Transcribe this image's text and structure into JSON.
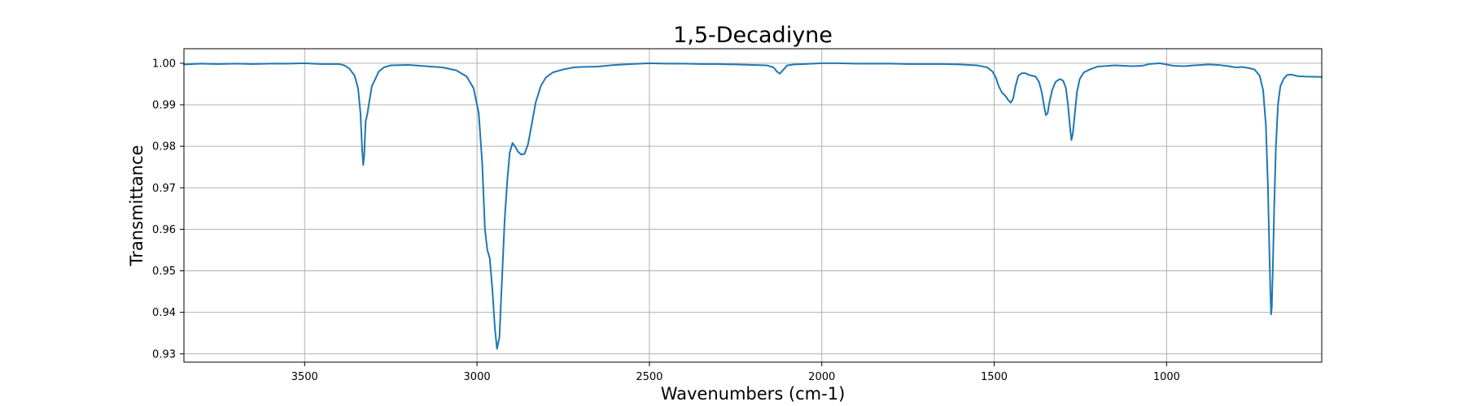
{
  "chart_data": {
    "type": "line",
    "title": "1,5-Decadiyne",
    "xlabel": "Wavenumbers (cm-1)",
    "ylabel": "Transmittance",
    "xlim": [
      3850,
      550
    ],
    "ylim": [
      0.928,
      1.0035
    ],
    "x_ticks": [
      3500,
      3000,
      2500,
      2000,
      1500,
      1000
    ],
    "y_ticks": [
      0.93,
      0.94,
      0.95,
      0.96,
      0.97,
      0.98,
      0.99,
      1.0
    ],
    "x_tick_labels": [
      "3500",
      "3000",
      "2500",
      "2000",
      "1500",
      "1000"
    ],
    "y_tick_labels": [
      "0.93",
      "0.94",
      "0.95",
      "0.96",
      "0.97",
      "0.98",
      "0.99",
      "1.00"
    ],
    "grid": true,
    "legend": "none",
    "colors": {
      "series": "#1f77b4",
      "grid": "#b0b0b0",
      "axis": "#000000",
      "background": "#ffffff"
    },
    "series": [
      {
        "points": [
          [
            3850,
            0.9997
          ],
          [
            3800,
            0.9999
          ],
          [
            3750,
            0.9998
          ],
          [
            3700,
            0.9999
          ],
          [
            3650,
            0.9998
          ],
          [
            3600,
            0.9999
          ],
          [
            3550,
            0.9999
          ],
          [
            3500,
            1.0
          ],
          [
            3450,
            0.9998
          ],
          [
            3400,
            0.9998
          ],
          [
            3385,
            0.9995
          ],
          [
            3370,
            0.9987
          ],
          [
            3355,
            0.997
          ],
          [
            3345,
            0.994
          ],
          [
            3338,
            0.988
          ],
          [
            3333,
            0.979
          ],
          [
            3330,
            0.9755
          ],
          [
            3327,
            0.978
          ],
          [
            3323,
            0.986
          ],
          [
            3318,
            0.9878
          ],
          [
            3312,
            0.991
          ],
          [
            3305,
            0.9945
          ],
          [
            3295,
            0.9962
          ],
          [
            3285,
            0.998
          ],
          [
            3270,
            0.999
          ],
          [
            3250,
            0.9995
          ],
          [
            3200,
            0.9996
          ],
          [
            3150,
            0.9993
          ],
          [
            3100,
            0.999
          ],
          [
            3060,
            0.9983
          ],
          [
            3030,
            0.9968
          ],
          [
            3010,
            0.994
          ],
          [
            2995,
            0.988
          ],
          [
            2985,
            0.976
          ],
          [
            2977,
            0.96
          ],
          [
            2970,
            0.955
          ],
          [
            2963,
            0.953
          ],
          [
            2955,
            0.945
          ],
          [
            2948,
            0.936
          ],
          [
            2942,
            0.9312
          ],
          [
            2935,
            0.934
          ],
          [
            2928,
            0.947
          ],
          [
            2920,
            0.962
          ],
          [
            2912,
            0.972
          ],
          [
            2905,
            0.9785
          ],
          [
            2897,
            0.9808
          ],
          [
            2890,
            0.98
          ],
          [
            2882,
            0.9788
          ],
          [
            2872,
            0.978
          ],
          [
            2862,
            0.9782
          ],
          [
            2852,
            0.9805
          ],
          [
            2842,
            0.985
          ],
          [
            2830,
            0.9905
          ],
          [
            2815,
            0.9945
          ],
          [
            2800,
            0.9966
          ],
          [
            2780,
            0.9978
          ],
          [
            2750,
            0.9985
          ],
          [
            2720,
            0.999
          ],
          [
            2700,
            0.9991
          ],
          [
            2650,
            0.9992
          ],
          [
            2600,
            0.9996
          ],
          [
            2550,
            0.9998
          ],
          [
            2500,
            1.0
          ],
          [
            2450,
            0.9999
          ],
          [
            2400,
            0.9999
          ],
          [
            2350,
            0.9998
          ],
          [
            2300,
            0.9998
          ],
          [
            2250,
            0.9997
          ],
          [
            2200,
            0.9996
          ],
          [
            2160,
            0.9995
          ],
          [
            2140,
            0.999
          ],
          [
            2130,
            0.998
          ],
          [
            2122,
            0.9975
          ],
          [
            2114,
            0.9982
          ],
          [
            2100,
            0.9995
          ],
          [
            2080,
            0.9997
          ],
          [
            2050,
            0.9998
          ],
          [
            2000,
            1.0
          ],
          [
            1950,
            1.0
          ],
          [
            1900,
            0.9999
          ],
          [
            1850,
            0.9999
          ],
          [
            1800,
            0.9999
          ],
          [
            1750,
            0.9998
          ],
          [
            1700,
            0.9998
          ],
          [
            1650,
            0.9998
          ],
          [
            1600,
            0.9997
          ],
          [
            1550,
            0.9995
          ],
          [
            1520,
            0.999
          ],
          [
            1505,
            0.998
          ],
          [
            1495,
            0.9965
          ],
          [
            1487,
            0.9945
          ],
          [
            1478,
            0.993
          ],
          [
            1466,
            0.992
          ],
          [
            1460,
            0.9912
          ],
          [
            1452,
            0.9905
          ],
          [
            1445,
            0.9915
          ],
          [
            1438,
            0.9945
          ],
          [
            1430,
            0.997
          ],
          [
            1420,
            0.9976
          ],
          [
            1410,
            0.9976
          ],
          [
            1400,
            0.9972
          ],
          [
            1390,
            0.997
          ],
          [
            1380,
            0.9968
          ],
          [
            1370,
            0.9955
          ],
          [
            1362,
            0.993
          ],
          [
            1355,
            0.9895
          ],
          [
            1350,
            0.9875
          ],
          [
            1345,
            0.988
          ],
          [
            1340,
            0.9905
          ],
          [
            1332,
            0.9935
          ],
          [
            1322,
            0.9955
          ],
          [
            1310,
            0.9962
          ],
          [
            1300,
            0.9958
          ],
          [
            1292,
            0.994
          ],
          [
            1286,
            0.99
          ],
          [
            1280,
            0.9845
          ],
          [
            1276,
            0.9815
          ],
          [
            1272,
            0.983
          ],
          [
            1266,
            0.988
          ],
          [
            1260,
            0.993
          ],
          [
            1252,
            0.9962
          ],
          [
            1240,
            0.9978
          ],
          [
            1220,
            0.9986
          ],
          [
            1200,
            0.9992
          ],
          [
            1150,
            0.9995
          ],
          [
            1100,
            0.9993
          ],
          [
            1070,
            0.9994
          ],
          [
            1050,
            0.9998
          ],
          [
            1020,
            1.0
          ],
          [
            1000,
            0.9997
          ],
          [
            980,
            0.9994
          ],
          [
            950,
            0.9993
          ],
          [
            920,
            0.9995
          ],
          [
            900,
            0.9996
          ],
          [
            880,
            0.9997
          ],
          [
            850,
            0.9996
          ],
          [
            820,
            0.9993
          ],
          [
            800,
            0.999
          ],
          [
            780,
            0.9991
          ],
          [
            760,
            0.9988
          ],
          [
            745,
            0.9985
          ],
          [
            730,
            0.997
          ],
          [
            720,
            0.9935
          ],
          [
            712,
            0.985
          ],
          [
            706,
            0.97
          ],
          [
            702,
            0.955
          ],
          [
            699,
            0.945
          ],
          [
            697,
            0.9395
          ],
          [
            695,
            0.941
          ],
          [
            692,
            0.95
          ],
          [
            688,
            0.965
          ],
          [
            683,
            0.98
          ],
          [
            677,
            0.99
          ],
          [
            670,
            0.9945
          ],
          [
            660,
            0.9963
          ],
          [
            650,
            0.9972
          ],
          [
            640,
            0.9973
          ],
          [
            630,
            0.9971
          ],
          [
            620,
            0.9969
          ],
          [
            600,
            0.9968
          ],
          [
            550,
            0.9967
          ]
        ]
      }
    ]
  }
}
